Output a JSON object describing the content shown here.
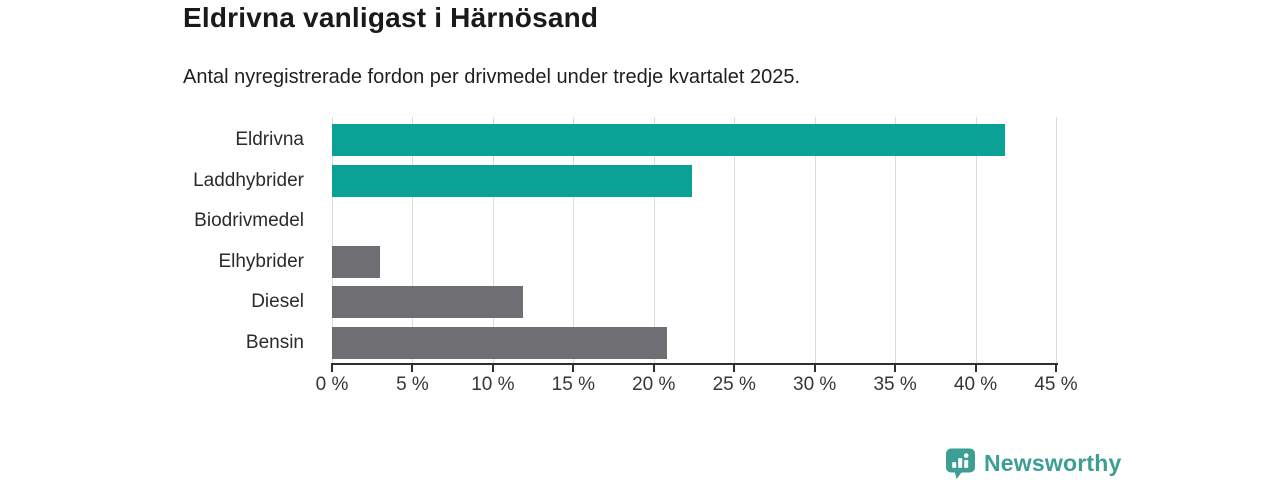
{
  "title": "Eldrivna vanligast i Härnösand",
  "subtitle": "Antal nyregistrerade fordon per drivmedel under tredje kvartalet 2025.",
  "colors": {
    "accent_teal": "#0aa296",
    "bar_gray": "#6e6e73",
    "gridline": "#dcdcdc",
    "axis": "#2f2f2f",
    "text_dark": "#1a1a1a",
    "logo_teal": "#3d9e93"
  },
  "chart_data": {
    "type": "bar",
    "orientation": "horizontal",
    "title": "Eldrivna vanligast i Härnösand",
    "subtitle": "Antal nyregistrerade fordon per drivmedel under tredje kvartalet 2025.",
    "categories": [
      "Eldrivna",
      "Laddhybrider",
      "Biodrivmedel",
      "Elhybrider",
      "Diesel",
      "Bensin"
    ],
    "values": [
      41.8,
      22.4,
      0,
      3.0,
      11.9,
      20.8
    ],
    "bar_colors": [
      "#0aa296",
      "#0aa296",
      "#6e6e73",
      "#6e6e73",
      "#6e6e73",
      "#6e6e73"
    ],
    "xlabel": "",
    "ylabel": "",
    "xlim": [
      0,
      45
    ],
    "xtick_values": [
      0,
      5,
      10,
      15,
      20,
      25,
      30,
      35,
      40,
      45
    ],
    "xtick_labels": [
      "0 %",
      "5 %",
      "10 %",
      "15 %",
      "20 %",
      "25 %",
      "30 %",
      "35 %",
      "40 %",
      "45 %"
    ],
    "grid": true,
    "legend": false
  },
  "footer": {
    "brand": "Newsworthy",
    "logo_icon": "newsworthy-barchart-pin-icon"
  }
}
